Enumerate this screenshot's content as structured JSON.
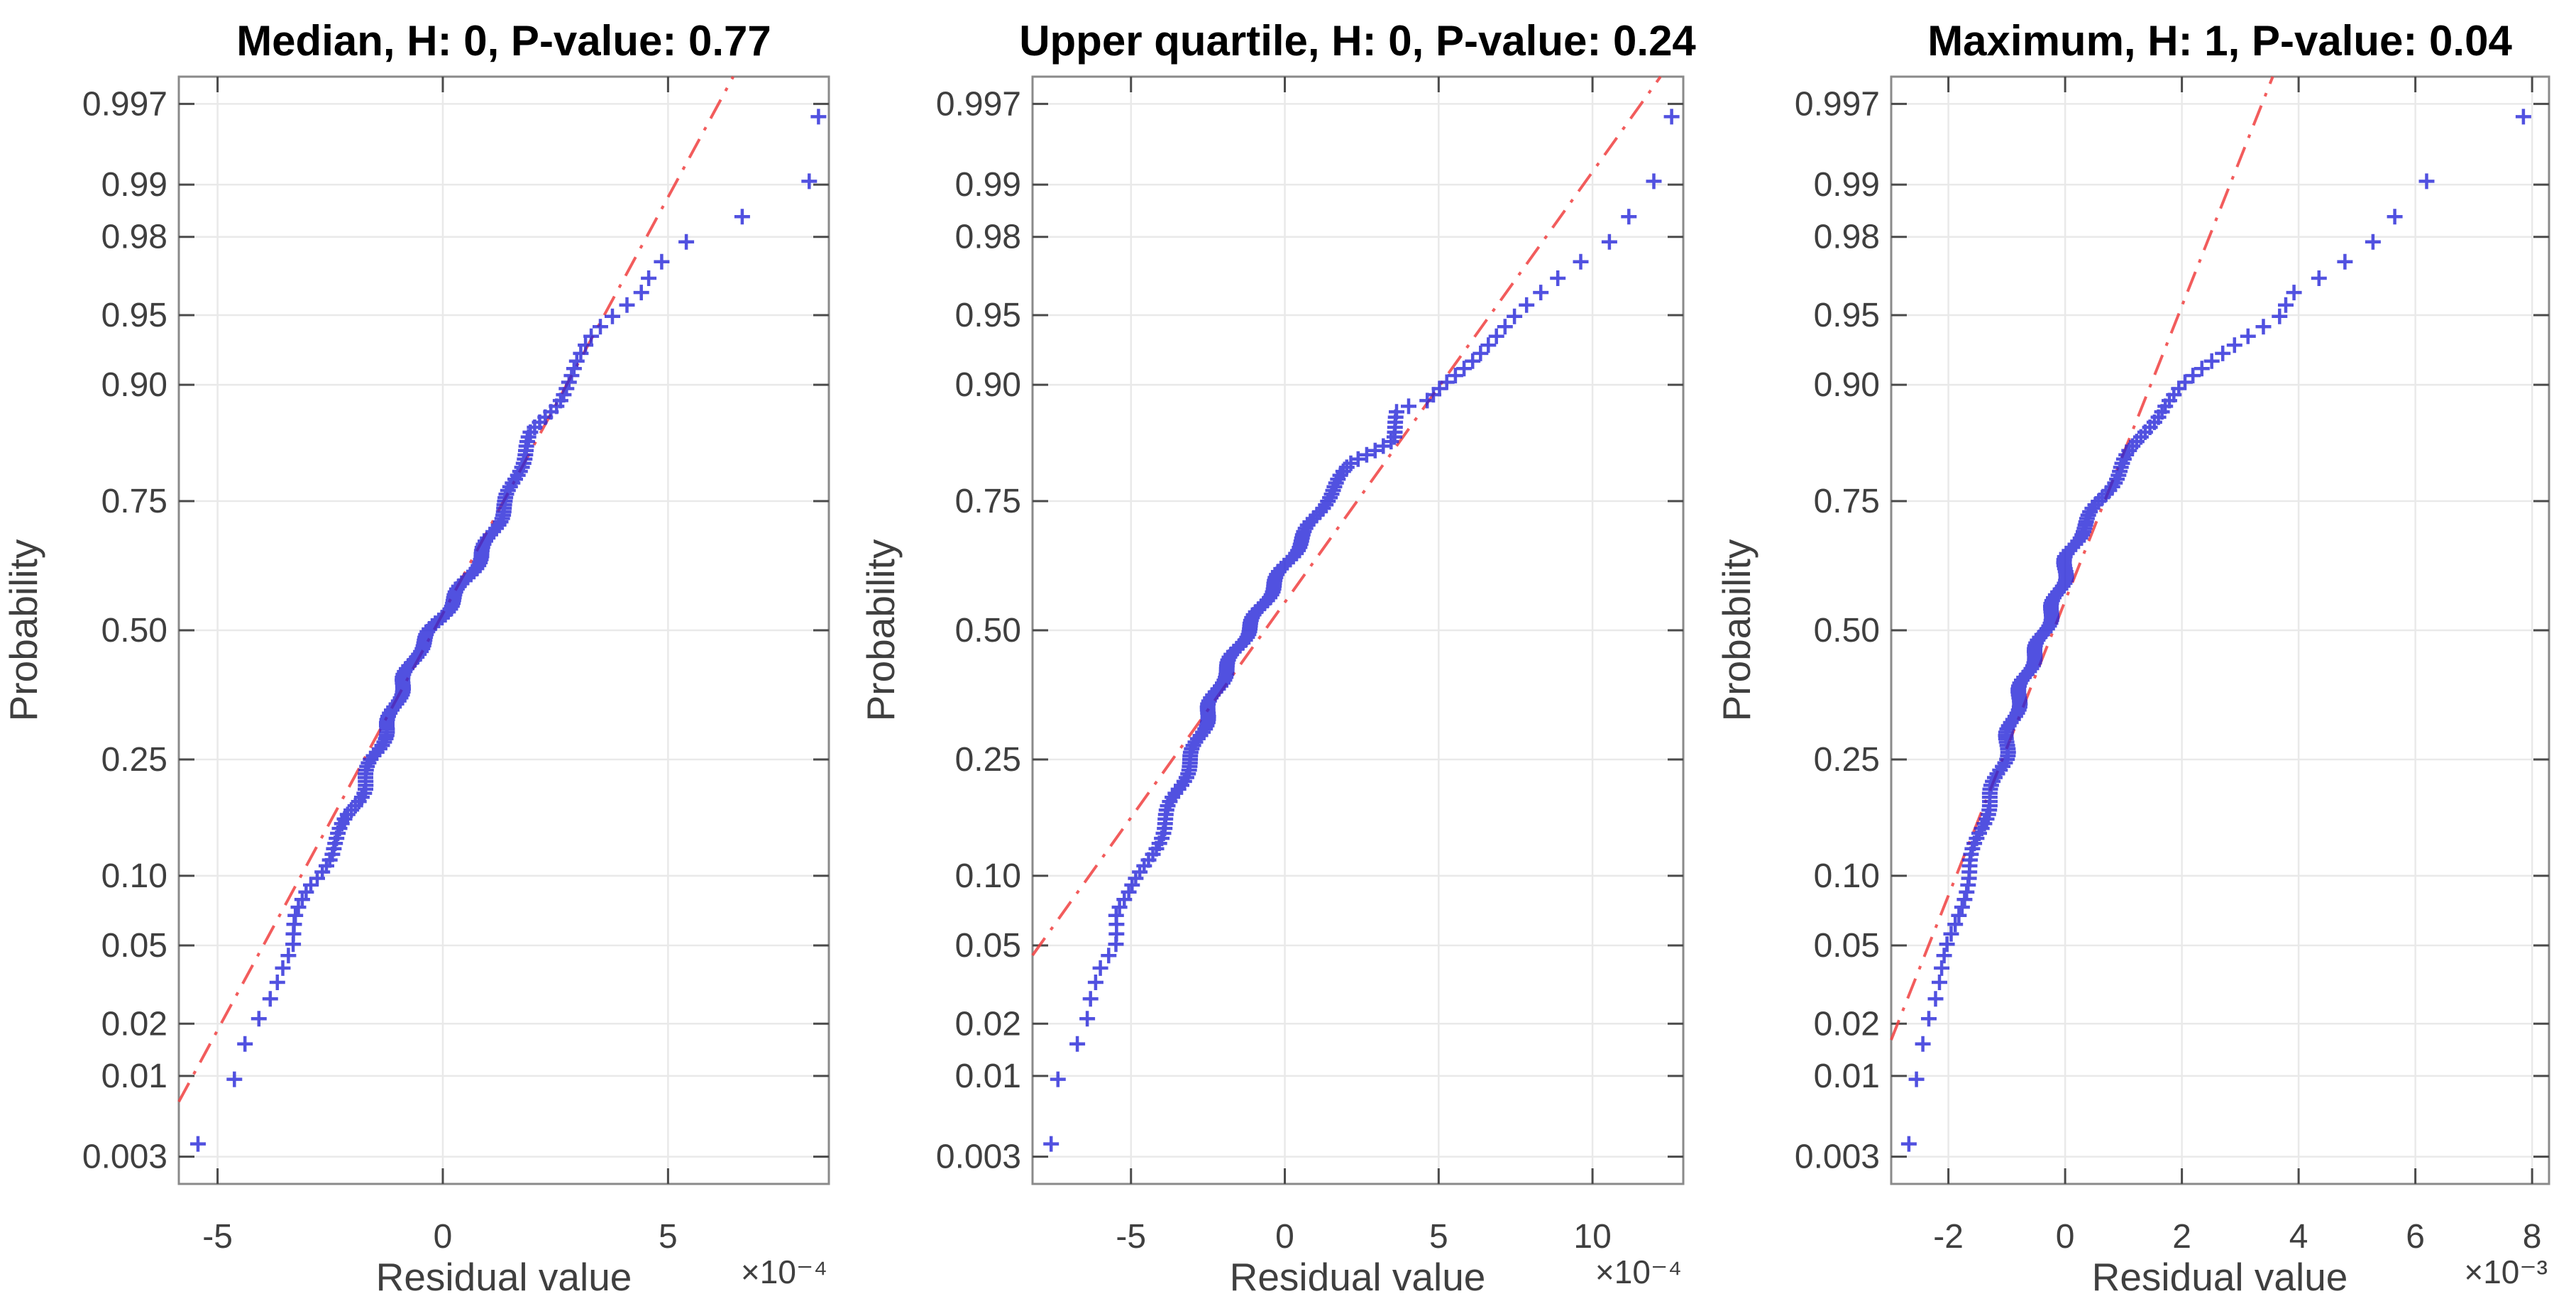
{
  "figure": {
    "background": "#ffffff",
    "kind": "MATLAB normal probability plots of residuals, 1x3 panel"
  },
  "style": {
    "marker_color": "#2626d8",
    "refline_color": "#f04040",
    "grid_color": "#e9e9e9",
    "axis_color": "#8a8a8a",
    "tick_color": "#4a4a4a",
    "text_color": "#3f3f3f",
    "title_color": "#000000"
  },
  "shared": {
    "ylabel": "Probability",
    "xlabel": "Residual value",
    "ytick_probs": [
      0.003,
      0.01,
      0.02,
      0.05,
      0.1,
      0.25,
      0.5,
      0.75,
      0.9,
      0.95,
      0.98,
      0.99,
      0.997
    ],
    "ytick_labels": [
      "0.003",
      "0.01",
      "0.02",
      "0.05",
      "0.10",
      "0.25",
      "0.50",
      "0.75",
      "0.90",
      "0.95",
      "0.98",
      "0.99",
      "0.997"
    ],
    "y_axis_type": "normal-quantile",
    "z_limit": 2.89
  },
  "chart_data": [
    {
      "type": "scatter",
      "title": "Median, H: 0, P-value: 0.77",
      "xlabel": "Residual value",
      "ylabel": "Probability",
      "x_scale_label": "×10⁻⁴",
      "xticks": [
        -5,
        0,
        5
      ],
      "xtick_labels": [
        "-5",
        "0",
        "5"
      ],
      "xlim": [
        -5.86,
        8.57
      ],
      "n_points": 170,
      "marker": "+",
      "curve_pq": [
        [
          0.0036,
          -5.45
        ],
        [
          0.0105,
          -4.54
        ],
        [
          0.018,
          -4.33
        ],
        [
          0.028,
          -3.86
        ],
        [
          0.04,
          -3.54
        ],
        [
          0.05,
          -3.28
        ],
        [
          0.07,
          -3.2
        ],
        [
          0.09,
          -3.0
        ],
        [
          0.1,
          -2.8
        ],
        [
          0.12,
          -2.5
        ],
        [
          0.14,
          -2.3
        ],
        [
          0.17,
          -2.08
        ],
        [
          0.2,
          -1.79
        ],
        [
          0.25,
          -1.56
        ],
        [
          0.3,
          -1.25
        ],
        [
          0.35,
          -1.05
        ],
        [
          0.4,
          -0.85
        ],
        [
          0.45,
          -0.6
        ],
        [
          0.5,
          -0.25
        ],
        [
          0.55,
          0.14
        ],
        [
          0.6,
          0.49
        ],
        [
          0.65,
          0.85
        ],
        [
          0.7,
          1.13
        ],
        [
          0.75,
          1.43
        ],
        [
          0.8,
          1.67
        ],
        [
          0.85,
          2.02
        ],
        [
          0.88,
          2.5
        ],
        [
          0.9,
          2.72
        ],
        [
          0.92,
          3.01
        ],
        [
          0.94,
          3.42
        ],
        [
          0.95,
          3.83
        ],
        [
          0.96,
          4.36
        ],
        [
          0.97,
          4.6
        ],
        [
          0.975,
          4.95
        ],
        [
          0.98,
          5.48
        ],
        [
          0.989,
          8.1
        ],
        [
          0.9965,
          8.35
        ]
      ],
      "refline": {
        "style": "dash-dot",
        "x_at_z0": -0.2,
        "slope_per_z": 2.3
      }
    },
    {
      "type": "scatter",
      "title": "Upper quartile, H: 0, P-value: 0.24",
      "xlabel": "Residual value",
      "ylabel": "Probability",
      "x_scale_label": "×10⁻⁴",
      "xticks": [
        -5,
        0,
        5,
        10
      ],
      "xtick_labels": [
        "-5",
        "0",
        "5",
        "10"
      ],
      "xlim": [
        -8.2,
        12.95
      ],
      "n_points": 170,
      "marker": "+",
      "curve_pq": [
        [
          0.0036,
          -7.6
        ],
        [
          0.0105,
          -7.35
        ],
        [
          0.019,
          -6.4
        ],
        [
          0.028,
          -6.3
        ],
        [
          0.04,
          -6.05
        ],
        [
          0.05,
          -5.6
        ],
        [
          0.07,
          -5.5
        ],
        [
          0.085,
          -5.0
        ],
        [
          0.1,
          -4.7
        ],
        [
          0.12,
          -4.35
        ],
        [
          0.15,
          -3.97
        ],
        [
          0.18,
          -3.7
        ],
        [
          0.21,
          -3.4
        ],
        [
          0.25,
          -3.05
        ],
        [
          0.3,
          -2.7
        ],
        [
          0.35,
          -2.4
        ],
        [
          0.4,
          -2.05
        ],
        [
          0.45,
          -1.65
        ],
        [
          0.5,
          -1.2
        ],
        [
          0.55,
          -0.75
        ],
        [
          0.6,
          -0.3
        ],
        [
          0.65,
          0.2
        ],
        [
          0.7,
          0.75
        ],
        [
          0.75,
          1.3
        ],
        [
          0.78,
          1.75
        ],
        [
          0.81,
          2.2
        ],
        [
          0.84,
          3.45
        ],
        [
          0.875,
          3.75
        ],
        [
          0.885,
          4.75
        ],
        [
          0.9,
          5.15
        ],
        [
          0.92,
          6.0
        ],
        [
          0.935,
          6.7
        ],
        [
          0.95,
          7.55
        ],
        [
          0.962,
          8.5
        ],
        [
          0.97,
          9.3
        ],
        [
          0.978,
          10.55
        ],
        [
          0.984,
          11.1
        ],
        [
          0.989,
          11.9
        ],
        [
          0.9965,
          12.6
        ]
      ],
      "refline": {
        "style": "dash-dot",
        "x_at_z0": -0.65,
        "slope_per_z": 4.45
      }
    },
    {
      "type": "scatter",
      "title": "Maximum, H: 1, P-value: 0.04",
      "xlabel": "Residual value",
      "ylabel": "Probability",
      "x_scale_label": "×10⁻³",
      "xticks": [
        -2,
        0,
        2,
        4,
        6,
        8
      ],
      "xtick_labels": [
        "-2",
        "0",
        "2",
        "4",
        "6",
        "8"
      ],
      "xlim": [
        -2.98,
        8.29
      ],
      "n_points": 170,
      "marker": "+",
      "curve_pq": [
        [
          0.0036,
          -2.68
        ],
        [
          0.01,
          -2.54
        ],
        [
          0.018,
          -2.4
        ],
        [
          0.03,
          -2.12
        ],
        [
          0.05,
          -2.0
        ],
        [
          0.08,
          -1.78
        ],
        [
          0.1,
          -1.65
        ],
        [
          0.15,
          -1.45
        ],
        [
          0.2,
          -1.25
        ],
        [
          0.25,
          -1.05
        ],
        [
          0.3,
          -0.95
        ],
        [
          0.4,
          -0.7
        ],
        [
          0.5,
          -0.35
        ],
        [
          0.6,
          -0.05
        ],
        [
          0.65,
          0.05
        ],
        [
          0.7,
          0.28
        ],
        [
          0.75,
          0.6
        ],
        [
          0.8,
          0.95
        ],
        [
          0.85,
          1.35
        ],
        [
          0.88,
          1.7
        ],
        [
          0.9,
          2.05
        ],
        [
          0.92,
          2.55
        ],
        [
          0.935,
          3.0
        ],
        [
          0.95,
          3.65
        ],
        [
          0.96,
          3.8
        ],
        [
          0.97,
          4.58
        ],
        [
          0.98,
          5.42
        ],
        [
          0.989,
          5.93
        ],
        [
          0.9965,
          7.93
        ]
      ],
      "refline": {
        "style": "dash-dot",
        "x_at_z0": -0.2,
        "slope_per_z": 1.3
      }
    }
  ]
}
